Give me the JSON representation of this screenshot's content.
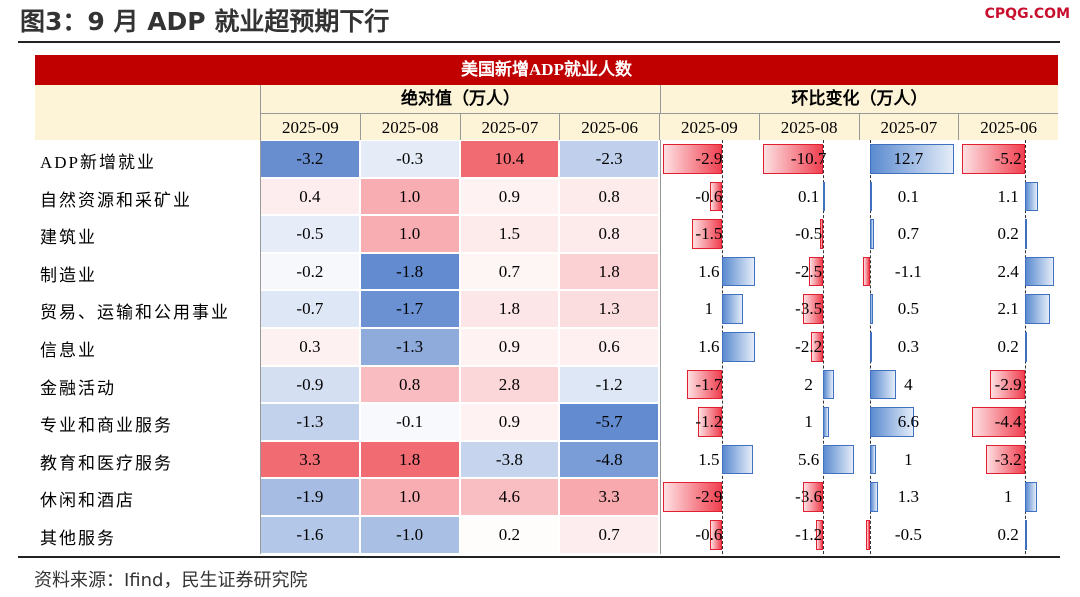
{
  "header": {
    "title": "图3：9 月 ADP 就业超预期下行",
    "logo": "CPQG.COM"
  },
  "table": {
    "title": "美国新增ADP就业人数",
    "groups": [
      "绝对值（万人）",
      "环比变化（万人）"
    ],
    "columns": [
      "2025-09",
      "2025-08",
      "2025-07",
      "2025-06",
      "2025-09",
      "2025-08",
      "2025-07",
      "2025-06"
    ],
    "rows": [
      {
        "label": "ADP新增就业",
        "cells": [
          "-3.2",
          "-0.3",
          "10.4",
          "-2.3",
          "-2.9",
          "-10.7",
          "12.7",
          "-5.2"
        ]
      },
      {
        "label": "自然资源和采矿业",
        "cells": [
          "0.4",
          "1.0",
          "0.9",
          "0.8",
          "-0.6",
          "0.1",
          "0.1",
          "1.1"
        ]
      },
      {
        "label": "建筑业",
        "cells": [
          "-0.5",
          "1.0",
          "1.5",
          "0.8",
          "-1.5",
          "-0.5",
          "0.7",
          "0.2"
        ]
      },
      {
        "label": "制造业",
        "cells": [
          "-0.2",
          "-1.8",
          "0.7",
          "1.8",
          "1.6",
          "-2.5",
          "-1.1",
          "2.4"
        ]
      },
      {
        "label": "贸易、运输和公用事业",
        "cells": [
          "-0.7",
          "-1.7",
          "1.8",
          "1.3",
          "1",
          "-3.5",
          "0.5",
          "2.1"
        ]
      },
      {
        "label": "信息业",
        "cells": [
          "0.3",
          "-1.3",
          "0.9",
          "0.6",
          "1.6",
          "-2.2",
          "0.3",
          "0.2"
        ]
      },
      {
        "label": "金融活动",
        "cells": [
          "-0.9",
          "0.8",
          "2.8",
          "-1.2",
          "-1.7",
          "2",
          "4",
          "-2.9"
        ]
      },
      {
        "label": "专业和商业服务",
        "cells": [
          "-1.3",
          "-0.1",
          "0.9",
          "-5.7",
          "-1.2",
          "1",
          "6.6",
          "-4.4"
        ]
      },
      {
        "label": "教育和医疗服务",
        "cells": [
          "3.3",
          "1.8",
          "-3.8",
          "-4.8",
          "1.5",
          "5.6",
          "1",
          "-3.2"
        ]
      },
      {
        "label": "休闲和酒店",
        "cells": [
          "-1.9",
          "1.0",
          "4.6",
          "3.3",
          "-2.9",
          "-3.6",
          "1.3",
          "1"
        ]
      },
      {
        "label": "其他服务",
        "cells": [
          "-1.6",
          "-1.0",
          "0.2",
          "0.7",
          "-0.6",
          "-1.2",
          "-0.5",
          "0.2"
        ]
      }
    ]
  },
  "source": "资料来源：Ifind，民生证券研究院"
}
